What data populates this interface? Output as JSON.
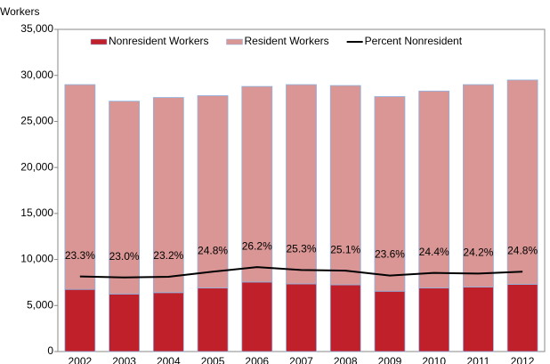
{
  "chart_data": {
    "type": "stacked_bar_line",
    "y_label": "Workers",
    "categories": [
      "2002",
      "2003",
      "2004",
      "2005",
      "2006",
      "2007",
      "2008",
      "2009",
      "2010",
      "2011",
      "2012"
    ],
    "series": [
      {
        "name": "Nonresident Workers",
        "type": "bar",
        "color": "#c0202a",
        "values": [
          6750,
          6250,
          6400,
          6900,
          7550,
          7350,
          7250,
          6550,
          6900,
          7000,
          7300
        ]
      },
      {
        "name": "Resident Workers",
        "type": "bar",
        "color": "#d99694",
        "values": [
          22250,
          20950,
          21200,
          20900,
          21250,
          21650,
          21650,
          21150,
          21400,
          22000,
          22200
        ]
      },
      {
        "name": "Percent Nonresident",
        "type": "line",
        "color": "#000000",
        "axis": "y2",
        "values": [
          23.3,
          23.0,
          23.2,
          24.8,
          26.2,
          25.3,
          25.1,
          23.6,
          24.4,
          24.2,
          24.8
        ],
        "value_labels": [
          "23.3%",
          "23.0%",
          "23.2%",
          "24.8%",
          "26.2%",
          "25.3%",
          "25.1%",
          "23.6%",
          "24.4%",
          "24.2%",
          "24.8%"
        ]
      }
    ],
    "ylim": [
      0,
      35000
    ],
    "yticks": [
      0,
      {
        "value": 5000,
        "label": "5,000"
      },
      {
        "value": 10000,
        "label": "10,000"
      },
      {
        "value": 15000,
        "label": "15,000"
      },
      {
        "value": 20000,
        "label": "20,000"
      },
      {
        "value": 25000,
        "label": "25,000"
      },
      {
        "value": 30000,
        "label": "30,000"
      },
      {
        "value": 35000,
        "label": "35,000"
      }
    ],
    "y2lim": [
      0,
      100
    ],
    "legend": "top"
  }
}
